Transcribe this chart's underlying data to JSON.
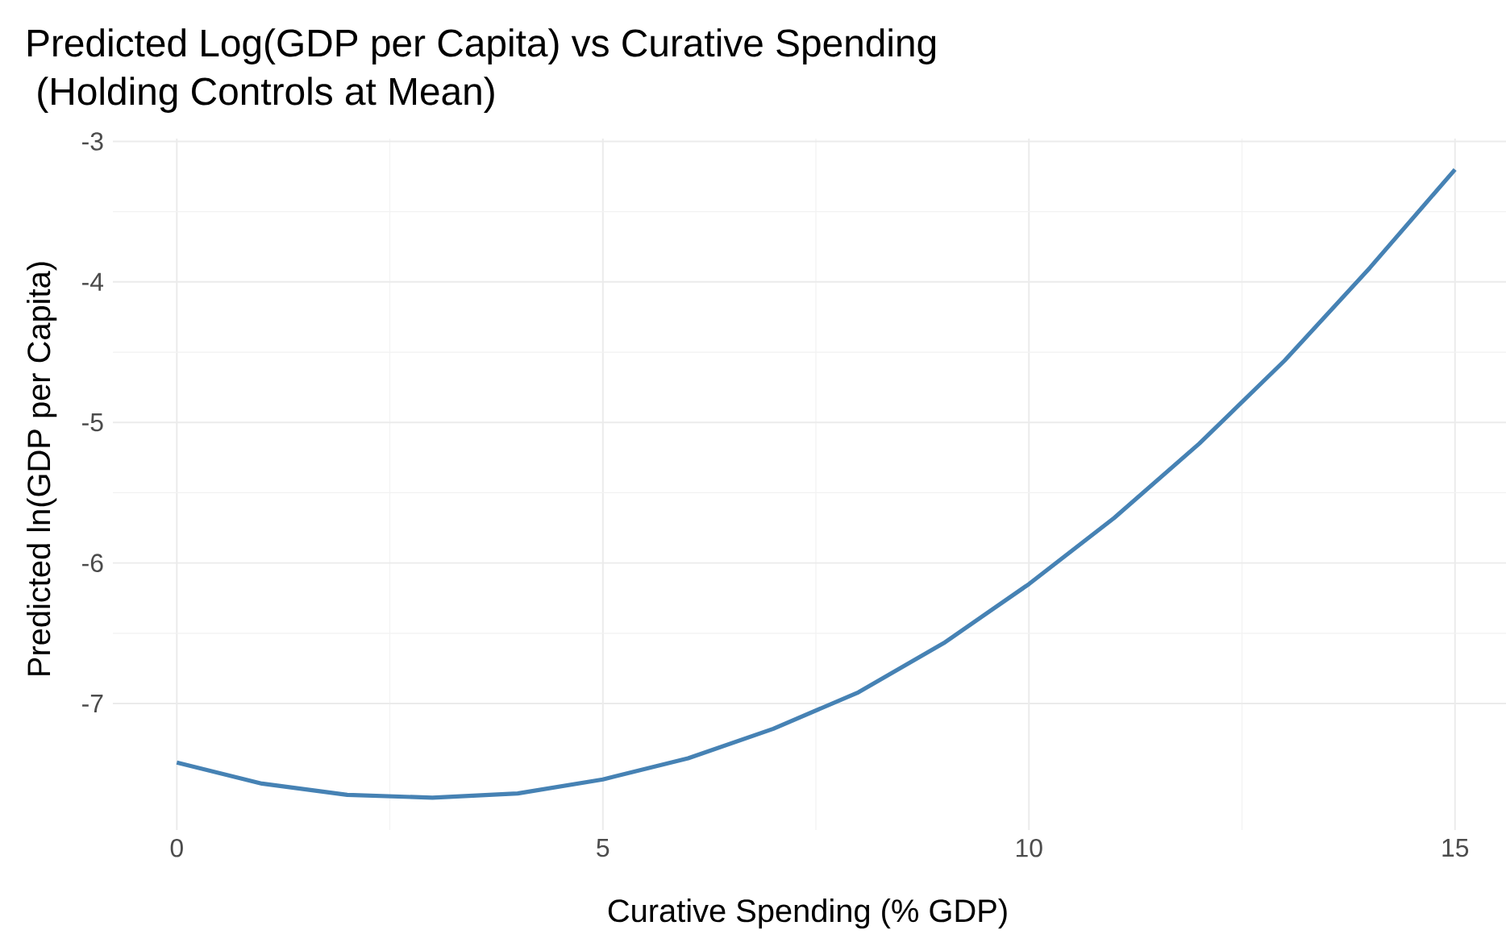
{
  "chart_data": {
    "type": "line",
    "title": "Predicted Log(GDP per Capita) vs Curative Spending",
    "subtitle": " (Holding Controls at Mean)",
    "xlabel": "Curative Spending (% GDP)",
    "ylabel": "Predicted ln(GDP per Capita)",
    "x": [
      0,
      1,
      2,
      3,
      4,
      5,
      6,
      7,
      8,
      9,
      10,
      11,
      12,
      13,
      14,
      15
    ],
    "series": [
      {
        "color": "#4682b4",
        "values": [
          -7.42,
          -7.57,
          -7.65,
          -7.67,
          -7.64,
          -7.54,
          -7.39,
          -7.18,
          -6.92,
          -6.57,
          -6.15,
          -5.68,
          -5.15,
          -4.56,
          -3.9,
          -3.2
        ]
      }
    ],
    "xlim": [
      -0.75,
      15.75
    ],
    "ylim": [
      -7.9,
      -2.98
    ],
    "xticks": [
      0,
      5,
      10,
      15
    ],
    "yticks": [
      -7,
      -6,
      -5,
      -4,
      -3
    ],
    "grid": true,
    "line_style": "solid",
    "marker": "none"
  }
}
